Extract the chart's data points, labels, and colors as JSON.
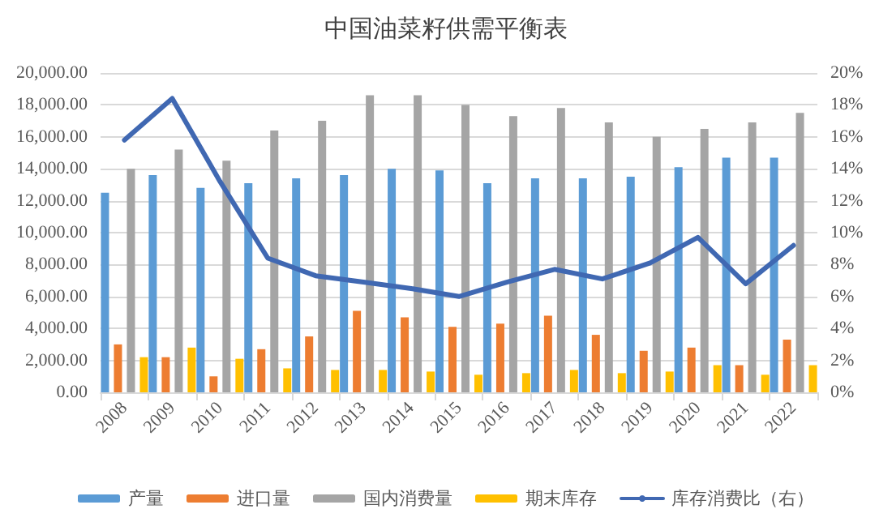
{
  "chart_data": {
    "type": "bar",
    "title": "中国油菜籽供需平衡表",
    "categories": [
      "2008",
      "2009",
      "2010",
      "2011",
      "2012",
      "2013",
      "2014",
      "2015",
      "2016",
      "2017",
      "2018",
      "2019",
      "2020",
      "2021",
      "2022"
    ],
    "series": [
      {
        "name": "产量",
        "color": "#5b9bd5",
        "values": [
          12500,
          13600,
          12800,
          13100,
          13400,
          13600,
          14000,
          13900,
          13100,
          13400,
          13400,
          13500,
          14100,
          14700,
          14700
        ]
      },
      {
        "name": "进口量",
        "color": "#ed7d31",
        "values": [
          3000,
          2200,
          1000,
          2700,
          3500,
          5100,
          4700,
          4100,
          4300,
          4800,
          3600,
          2600,
          2800,
          1700,
          3300
        ]
      },
      {
        "name": "国内消费量",
        "color": "#a5a5a5",
        "values": [
          14000,
          15200,
          14500,
          16400,
          17000,
          18600,
          18600,
          18000,
          17300,
          17800,
          16900,
          16000,
          16500,
          16900,
          17500
        ]
      },
      {
        "name": "期末库存",
        "color": "#ffc000",
        "values": [
          2200,
          2800,
          2100,
          1500,
          1400,
          1400,
          1300,
          1100,
          1200,
          1400,
          1200,
          1300,
          1700,
          1100,
          1700
        ]
      },
      {
        "name": "库存消费比（右）",
        "type": "line",
        "axis": "y2",
        "color": "#4068b2",
        "values": [
          15.8,
          18.4,
          13.2,
          8.4,
          7.3,
          6.9,
          6.5,
          6.0,
          6.9,
          7.7,
          7.1,
          8.1,
          9.7,
          6.8,
          9.2
        ]
      }
    ],
    "ylim": [
      0,
      20000
    ],
    "yticks": [
      {
        "value": 0,
        "label": "0.00"
      },
      {
        "value": 2000,
        "label": "2,000.00"
      },
      {
        "value": 4000,
        "label": "4,000.00"
      },
      {
        "value": 6000,
        "label": "6,000.00"
      },
      {
        "value": 8000,
        "label": "8,000.00"
      },
      {
        "value": 10000,
        "label": "10,000.00"
      },
      {
        "value": 12000,
        "label": "12,000.00"
      },
      {
        "value": 14000,
        "label": "14,000.00"
      },
      {
        "value": 16000,
        "label": "16,000.00"
      },
      {
        "value": 18000,
        "label": "18,000.00"
      },
      {
        "value": 20000,
        "label": "20,000.00"
      }
    ],
    "y2lim": [
      0,
      20
    ],
    "y2ticks": [
      {
        "value": 0,
        "label": "0%"
      },
      {
        "value": 2,
        "label": "2%"
      },
      {
        "value": 4,
        "label": "4%"
      },
      {
        "value": 6,
        "label": "6%"
      },
      {
        "value": 8,
        "label": "8%"
      },
      {
        "value": 10,
        "label": "10%"
      },
      {
        "value": 12,
        "label": "12%"
      },
      {
        "value": 14,
        "label": "14%"
      },
      {
        "value": 16,
        "label": "16%"
      },
      {
        "value": 18,
        "label": "18%"
      },
      {
        "value": 20,
        "label": "20%"
      }
    ],
    "grid": "y",
    "legend": "bottom",
    "marker": "none",
    "line_style": "solid"
  }
}
